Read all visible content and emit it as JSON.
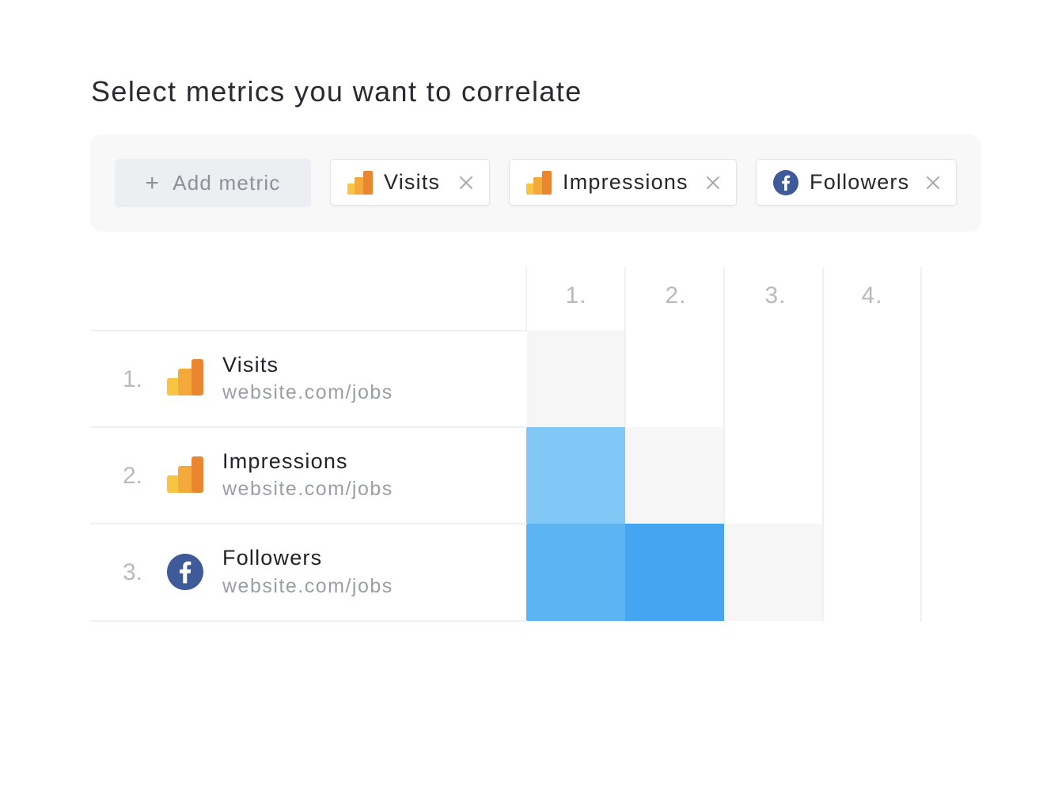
{
  "heading": "Select metrics you want to correlate",
  "toolbar": {
    "add_label": "Add metric",
    "chips": [
      {
        "label": "Visits",
        "source": "analytics-icon"
      },
      {
        "label": "Impressions",
        "source": "analytics-icon"
      },
      {
        "label": "Followers",
        "source": "facebook-icon"
      }
    ]
  },
  "matrix": {
    "columns": [
      "1.",
      "2.",
      "3.",
      "4."
    ],
    "rows": [
      {
        "index": "1.",
        "name": "Visits",
        "url": "website.com/jobs",
        "source": "analytics-icon"
      },
      {
        "index": "2.",
        "name": "Impressions",
        "url": "website.com/jobs",
        "source": "analytics-icon"
      },
      {
        "index": "3.",
        "name": "Followers",
        "url": "website.com/jobs",
        "source": "facebook-icon"
      }
    ],
    "cell_colors": {
      "diagonal": "#f6f6f6",
      "r2c1": "#82c8f6",
      "r3c1": "#5cb4f3",
      "r3c2": "#45a5f1"
    }
  },
  "colors": {
    "analytics_light": "#f8c443",
    "analytics_dark": "#e9862f",
    "facebook": "#3e5a98"
  }
}
